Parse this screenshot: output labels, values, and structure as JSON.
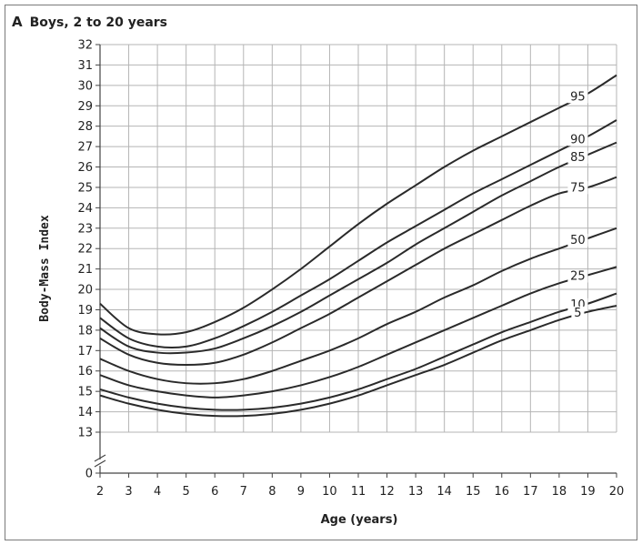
{
  "chart_data": {
    "type": "line",
    "panel_letter": "A",
    "title": "Boys, 2 to 20 years",
    "xlabel": "Age (years)",
    "ylabel": "Body-Mass Index",
    "xlim": [
      2,
      20
    ],
    "ylim": [
      0,
      32
    ],
    "axis_break": {
      "from": 0,
      "to": 13
    },
    "grid": true,
    "x_ticks": [
      2,
      3,
      4,
      5,
      6,
      7,
      8,
      9,
      10,
      11,
      12,
      13,
      14,
      15,
      16,
      17,
      18,
      19,
      20
    ],
    "y_ticks": [
      0,
      13,
      14,
      15,
      16,
      17,
      18,
      19,
      20,
      21,
      22,
      23,
      24,
      25,
      26,
      27,
      28,
      29,
      30,
      31,
      32
    ],
    "x": [
      2,
      3,
      4,
      5,
      6,
      7,
      8,
      9,
      10,
      11,
      12,
      13,
      14,
      15,
      16,
      17,
      18,
      19,
      20
    ],
    "series": [
      {
        "name": "95",
        "values": [
          19.3,
          18.1,
          17.8,
          17.9,
          18.4,
          19.1,
          20.0,
          21.0,
          22.1,
          23.2,
          24.2,
          25.1,
          26.0,
          26.8,
          27.5,
          28.2,
          28.9,
          29.6,
          30.5
        ]
      },
      {
        "name": "90",
        "values": [
          18.6,
          17.6,
          17.2,
          17.2,
          17.6,
          18.2,
          18.9,
          19.7,
          20.5,
          21.4,
          22.3,
          23.1,
          23.9,
          24.7,
          25.4,
          26.1,
          26.8,
          27.5,
          28.3
        ]
      },
      {
        "name": "85",
        "values": [
          18.1,
          17.2,
          16.9,
          16.9,
          17.1,
          17.6,
          18.2,
          18.9,
          19.7,
          20.5,
          21.3,
          22.2,
          23.0,
          23.8,
          24.6,
          25.3,
          26.0,
          26.6,
          27.2
        ]
      },
      {
        "name": "75",
        "values": [
          17.6,
          16.8,
          16.4,
          16.3,
          16.4,
          16.8,
          17.4,
          18.1,
          18.8,
          19.6,
          20.4,
          21.2,
          22.0,
          22.7,
          23.4,
          24.1,
          24.7,
          25.0,
          25.5
        ]
      },
      {
        "name": "50",
        "values": [
          16.6,
          16.0,
          15.6,
          15.4,
          15.4,
          15.6,
          16.0,
          16.5,
          17.0,
          17.6,
          18.3,
          18.9,
          19.6,
          20.2,
          20.9,
          21.5,
          22.0,
          22.5,
          23.0
        ]
      },
      {
        "name": "25",
        "values": [
          15.8,
          15.3,
          15.0,
          14.8,
          14.7,
          14.8,
          15.0,
          15.3,
          15.7,
          16.2,
          16.8,
          17.4,
          18.0,
          18.6,
          19.2,
          19.8,
          20.3,
          20.7,
          21.1
        ]
      },
      {
        "name": "10",
        "values": [
          15.1,
          14.7,
          14.4,
          14.2,
          14.1,
          14.1,
          14.2,
          14.4,
          14.7,
          15.1,
          15.6,
          16.1,
          16.7,
          17.3,
          17.9,
          18.4,
          18.9,
          19.3,
          19.8
        ]
      },
      {
        "name": "5",
        "values": [
          14.8,
          14.4,
          14.1,
          13.9,
          13.8,
          13.8,
          13.9,
          14.1,
          14.4,
          14.8,
          15.3,
          15.8,
          16.3,
          16.9,
          17.5,
          18.0,
          18.5,
          18.9,
          19.2
        ]
      }
    ]
  }
}
